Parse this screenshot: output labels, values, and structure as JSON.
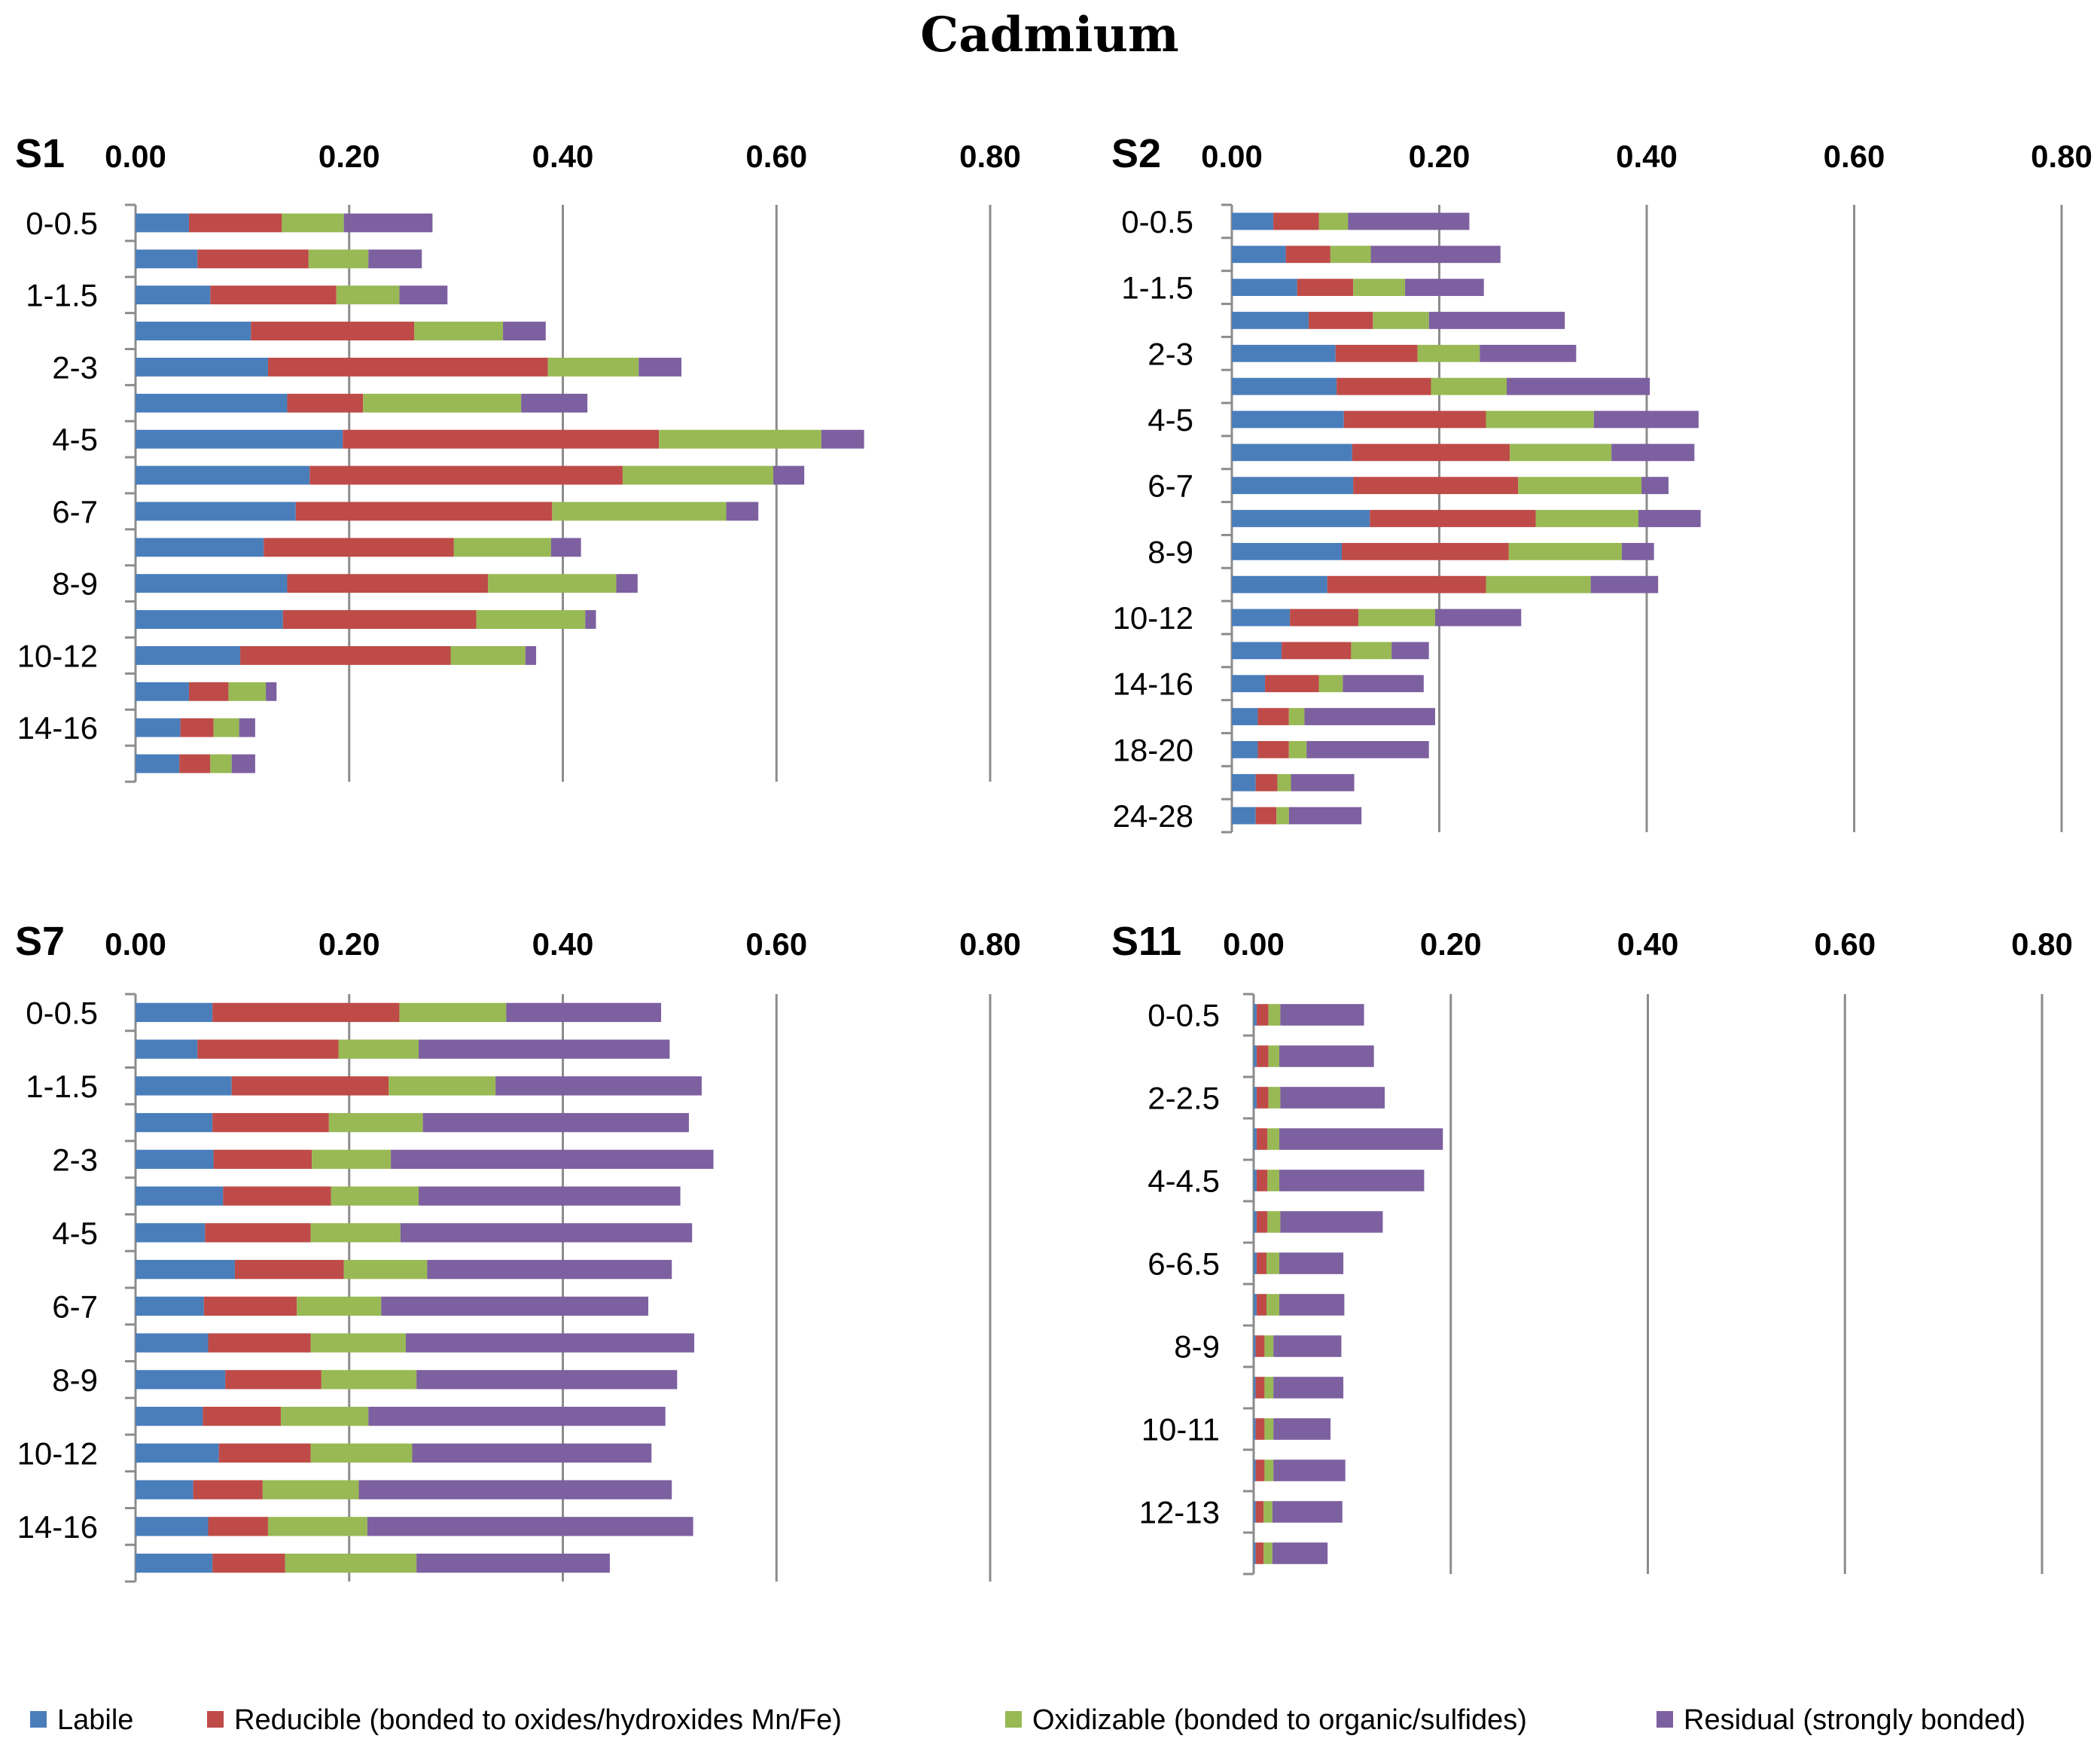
{
  "chart_data": {
    "type": "bar",
    "orientation": "horizontal",
    "stacked": true,
    "title": "Cadmium",
    "series_names": [
      "Labile",
      "Reducible (bonded to oxides/hydroxides Mn/Fe)",
      "Oxidizable (bonded to organic/sulfides)",
      "Residual (strongly bonded)"
    ],
    "series_colors": [
      "#4a7ebb",
      "#be4b48",
      "#98b954",
      "#7d60a0"
    ],
    "axis": {
      "xlim": [
        0,
        0.8
      ],
      "ticks": [
        0,
        0.2,
        0.4,
        0.6,
        0.8
      ],
      "tick_labels": [
        "0.00",
        "0.20",
        "0.40",
        "0.60",
        "0.80"
      ],
      "grid": true
    },
    "legend_position": "bottom",
    "panels": [
      {
        "name": "S1",
        "category_labels": [
          "0-0.5",
          "",
          "1-1.5",
          "",
          "2-3",
          "",
          "4-5",
          "",
          "6-7",
          "",
          "8-9",
          "",
          "10-12",
          "",
          "14-16",
          ""
        ],
        "rows": [
          [
            0.05,
            0.087,
            0.058,
            0.083
          ],
          [
            0.058,
            0.104,
            0.056,
            0.05
          ],
          [
            0.07,
            0.118,
            0.059,
            0.045
          ],
          [
            0.108,
            0.153,
            0.083,
            0.04
          ],
          [
            0.124,
            0.262,
            0.085,
            0.04
          ],
          [
            0.142,
            0.071,
            0.148,
            0.062
          ],
          [
            0.194,
            0.296,
            0.152,
            0.04
          ],
          [
            0.163,
            0.293,
            0.141,
            0.029
          ],
          [
            0.15,
            0.24,
            0.163,
            0.03
          ],
          [
            0.12,
            0.178,
            0.091,
            0.028
          ],
          [
            0.142,
            0.188,
            0.12,
            0.02
          ],
          [
            0.138,
            0.181,
            0.102,
            0.01
          ],
          [
            0.098,
            0.197,
            0.07,
            0.01
          ],
          [
            0.05,
            0.037,
            0.035,
            0.01
          ],
          [
            0.042,
            0.031,
            0.024,
            0.015
          ],
          [
            0.041,
            0.029,
            0.02,
            0.022
          ]
        ]
      },
      {
        "name": "S2",
        "category_labels": [
          "0-0.5",
          "",
          "1-1.5",
          "",
          "2-3",
          "",
          "4-5",
          "",
          "6-7",
          "",
          "8-9",
          "",
          "10-12",
          "",
          "14-16",
          "",
          "18-20",
          "",
          "24-28"
        ],
        "rows": [
          [
            0.04,
            0.044,
            0.028,
            0.117
          ],
          [
            0.052,
            0.043,
            0.039,
            0.125
          ],
          [
            0.063,
            0.054,
            0.05,
            0.076
          ],
          [
            0.074,
            0.062,
            0.054,
            0.131
          ],
          [
            0.1,
            0.079,
            0.06,
            0.093
          ],
          [
            0.101,
            0.091,
            0.073,
            0.138
          ],
          [
            0.108,
            0.137,
            0.104,
            0.101
          ],
          [
            0.116,
            0.152,
            0.098,
            0.08
          ],
          [
            0.117,
            0.159,
            0.119,
            0.026
          ],
          [
            0.133,
            0.16,
            0.099,
            0.06
          ],
          [
            0.106,
            0.161,
            0.109,
            0.031
          ],
          [
            0.092,
            0.153,
            0.101,
            0.065
          ],
          [
            0.056,
            0.066,
            0.074,
            0.083
          ],
          [
            0.048,
            0.067,
            0.039,
            0.036
          ],
          [
            0.032,
            0.052,
            0.023,
            0.078
          ],
          [
            0.025,
            0.03,
            0.015,
            0.126
          ],
          [
            0.025,
            0.03,
            0.017,
            0.118
          ],
          [
            0.023,
            0.021,
            0.013,
            0.061
          ],
          [
            0.023,
            0.02,
            0.012,
            0.07
          ]
        ]
      },
      {
        "name": "S7",
        "category_labels": [
          "0-0.5",
          "",
          "1-1.5",
          "",
          "2-3",
          "",
          "4-5",
          "",
          "6-7",
          "",
          "8-9",
          "",
          "10-12",
          "",
          "14-16",
          ""
        ],
        "rows": [
          [
            0.072,
            0.175,
            0.1,
            0.145
          ],
          [
            0.058,
            0.132,
            0.075,
            0.235
          ],
          [
            0.09,
            0.147,
            0.1,
            0.193
          ],
          [
            0.072,
            0.109,
            0.088,
            0.249
          ],
          [
            0.073,
            0.092,
            0.074,
            0.302
          ],
          [
            0.082,
            0.101,
            0.082,
            0.245
          ],
          [
            0.065,
            0.099,
            0.084,
            0.273
          ],
          [
            0.093,
            0.102,
            0.078,
            0.229
          ],
          [
            0.064,
            0.087,
            0.079,
            0.25
          ],
          [
            0.068,
            0.096,
            0.089,
            0.27
          ],
          [
            0.084,
            0.09,
            0.089,
            0.244
          ],
          [
            0.063,
            0.073,
            0.082,
            0.278
          ],
          [
            0.078,
            0.086,
            0.095,
            0.224
          ],
          [
            0.054,
            0.065,
            0.09,
            0.293
          ],
          [
            0.068,
            0.056,
            0.093,
            0.305
          ],
          [
            0.072,
            0.068,
            0.123,
            0.181
          ]
        ]
      },
      {
        "name": "S11",
        "category_labels": [
          "0-0.5",
          "",
          "2-2.5",
          "",
          "4-4.5",
          "",
          "6-6.5",
          "",
          "8-9",
          "",
          "10-11",
          "",
          "12-13",
          ""
        ],
        "rows": [
          [
            0.003,
            0.012,
            0.012,
            0.085
          ],
          [
            0.003,
            0.012,
            0.011,
            0.096
          ],
          [
            0.003,
            0.012,
            0.012,
            0.106
          ],
          [
            0.003,
            0.011,
            0.012,
            0.166
          ],
          [
            0.003,
            0.011,
            0.012,
            0.147
          ],
          [
            0.003,
            0.011,
            0.013,
            0.104
          ],
          [
            0.003,
            0.01,
            0.013,
            0.065
          ],
          [
            0.003,
            0.01,
            0.013,
            0.066
          ],
          [
            0.002,
            0.009,
            0.009,
            0.069
          ],
          [
            0.002,
            0.009,
            0.009,
            0.071
          ],
          [
            0.002,
            0.009,
            0.009,
            0.058
          ],
          [
            0.002,
            0.009,
            0.009,
            0.073
          ],
          [
            0.002,
            0.008,
            0.009,
            0.071
          ],
          [
            0.002,
            0.008,
            0.009,
            0.056
          ]
        ]
      }
    ]
  }
}
